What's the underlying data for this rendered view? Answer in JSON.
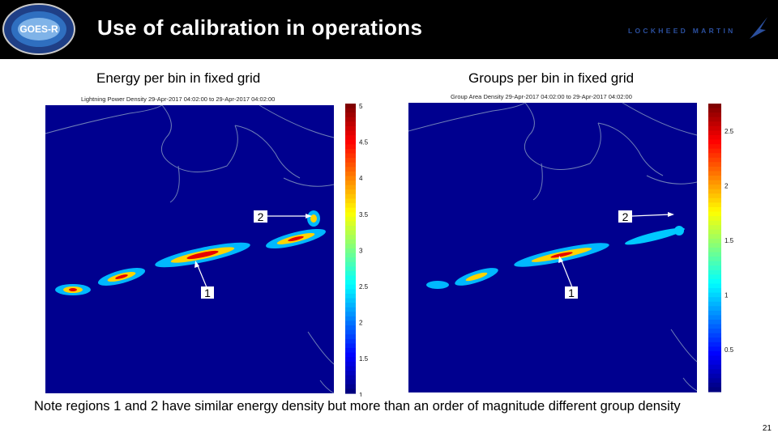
{
  "header": {
    "title": "Use of calibration in operations",
    "logo_text": "GOES-R",
    "company_logo_text": "LOCKHEED MARTIN"
  },
  "panels": [
    {
      "subtitle": "Energy per bin in fixed grid",
      "plot_title": "Lightning Power Density 29-Apr-2017 04:02:00 to 29-Apr-2017 04:02:00",
      "colorbar_ticks": [
        "5",
        "4.5",
        "4",
        "3.5",
        "3",
        "2.5",
        "2",
        "1.5",
        "1"
      ],
      "markers": [
        "2",
        "1"
      ]
    },
    {
      "subtitle": "Groups per bin in fixed grid",
      "plot_title": "Group Area Density 29-Apr-2017 04:02:00 to 29-Apr-2017 04:02:00",
      "colorbar_ticks": [
        "2.5",
        "2",
        "1.5",
        "1",
        "0.5"
      ],
      "markers": [
        "2",
        "1"
      ]
    }
  ],
  "note": "Note regions 1 and 2 have similar energy density but more than an order of magnitude different group density",
  "page_number": "21",
  "colors": {
    "map_background": "#00008f",
    "coastline": "#6f7fb8",
    "header_background": "#000000"
  }
}
